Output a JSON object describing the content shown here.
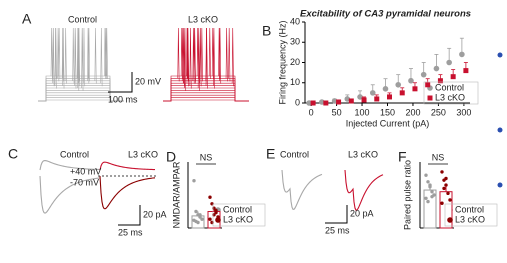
{
  "chart_data": [
    {
      "type": "trace",
      "panel_label": "A",
      "labels": [
        "Control",
        "L3 cKO"
      ],
      "scale_labels": [
        "20 mV",
        "100 ms"
      ]
    },
    {
      "type": "line",
      "panel_label": "B",
      "title": "Excitability of CA3 pyramidal neurons",
      "x_label": "Injected Current (pA)",
      "y_label": "Firing frequency (Hz)",
      "x": [
        0,
        25,
        50,
        75,
        100,
        125,
        150,
        175,
        200,
        225,
        250,
        275,
        300
      ],
      "xlim": [
        -12,
        312
      ],
      "xticks": [
        0,
        50,
        100,
        150,
        200,
        250,
        300
      ],
      "ylim": [
        0,
        40
      ],
      "yticks": [
        0,
        10,
        20,
        30,
        40
      ],
      "legend": "lower right",
      "series": [
        {
          "name": "Control",
          "color": "#9e9e9e",
          "marker": "circle",
          "values": [
            0,
            0.5,
            1,
            2,
            3,
            5,
            7,
            9,
            11,
            14,
            17,
            20,
            24
          ],
          "errors": [
            0,
            0.5,
            1,
            2,
            3,
            4,
            5,
            5,
            6,
            6,
            7,
            7,
            8
          ]
        },
        {
          "name": "L3 cKO",
          "color": "#c8102e",
          "marker": "square",
          "values": [
            0,
            0,
            0.5,
            1,
            1.5,
            2,
            3,
            5,
            7,
            9,
            11,
            13,
            16
          ],
          "errors": [
            0,
            0,
            0.5,
            1,
            1.5,
            2,
            2,
            2.5,
            3,
            3,
            3,
            3.5,
            4
          ]
        }
      ]
    },
    {
      "type": "trace",
      "panel_label": "C",
      "labels": [
        "Control",
        "L3 cKO"
      ],
      "annotations": [
        "+40 mV",
        "-70 mV"
      ],
      "scale_labels": [
        "20 pA",
        "25 ms"
      ]
    },
    {
      "type": "bar",
      "panel_label": "D",
      "y_label": "NMDAR/AMPAR",
      "annotation": "NS",
      "ylim": [
        0,
        0.6
      ],
      "legend": "lower right",
      "series": [
        {
          "name": "Control",
          "color": "#9e9e9e",
          "values": [
            0.11
          ],
          "errors": [
            0.04
          ],
          "points": [
            0.43,
            0.15,
            0.12,
            0.1,
            0.08,
            0.07,
            0.06,
            0.05,
            0.12
          ]
        },
        {
          "name": "L3 cKO",
          "color": "#c8102e",
          "values": [
            0.15
          ],
          "errors": [
            0.03
          ],
          "points": [
            0.28,
            0.22,
            0.18,
            0.14,
            0.1,
            0.08,
            0.05,
            0.12,
            0.16
          ]
        }
      ]
    },
    {
      "type": "trace",
      "panel_label": "E",
      "labels": [
        "Control",
        "L3 cKO"
      ],
      "scale_labels": [
        "20 pA",
        "25 ms"
      ]
    },
    {
      "type": "bar",
      "panel_label": "F",
      "y_label": "Paired pulse ratio",
      "annotation": "NS",
      "ylim": [
        0,
        4
      ],
      "legend": "lower right",
      "series": [
        {
          "name": "Control",
          "color": "#9e9e9e",
          "values": [
            2.3
          ],
          "errors": [
            0.3
          ],
          "points": [
            3.2,
            2.8,
            2.5,
            2.2,
            2.0,
            1.8,
            1.6,
            2.6,
            1.9
          ]
        },
        {
          "name": "L3 cKO",
          "color": "#c8102e",
          "values": [
            2.2
          ],
          "errors": [
            0.3
          ],
          "points": [
            3.4,
            2.9,
            2.6,
            2.1,
            1.7,
            1.5,
            2.4,
            3.0
          ]
        }
      ]
    }
  ]
}
